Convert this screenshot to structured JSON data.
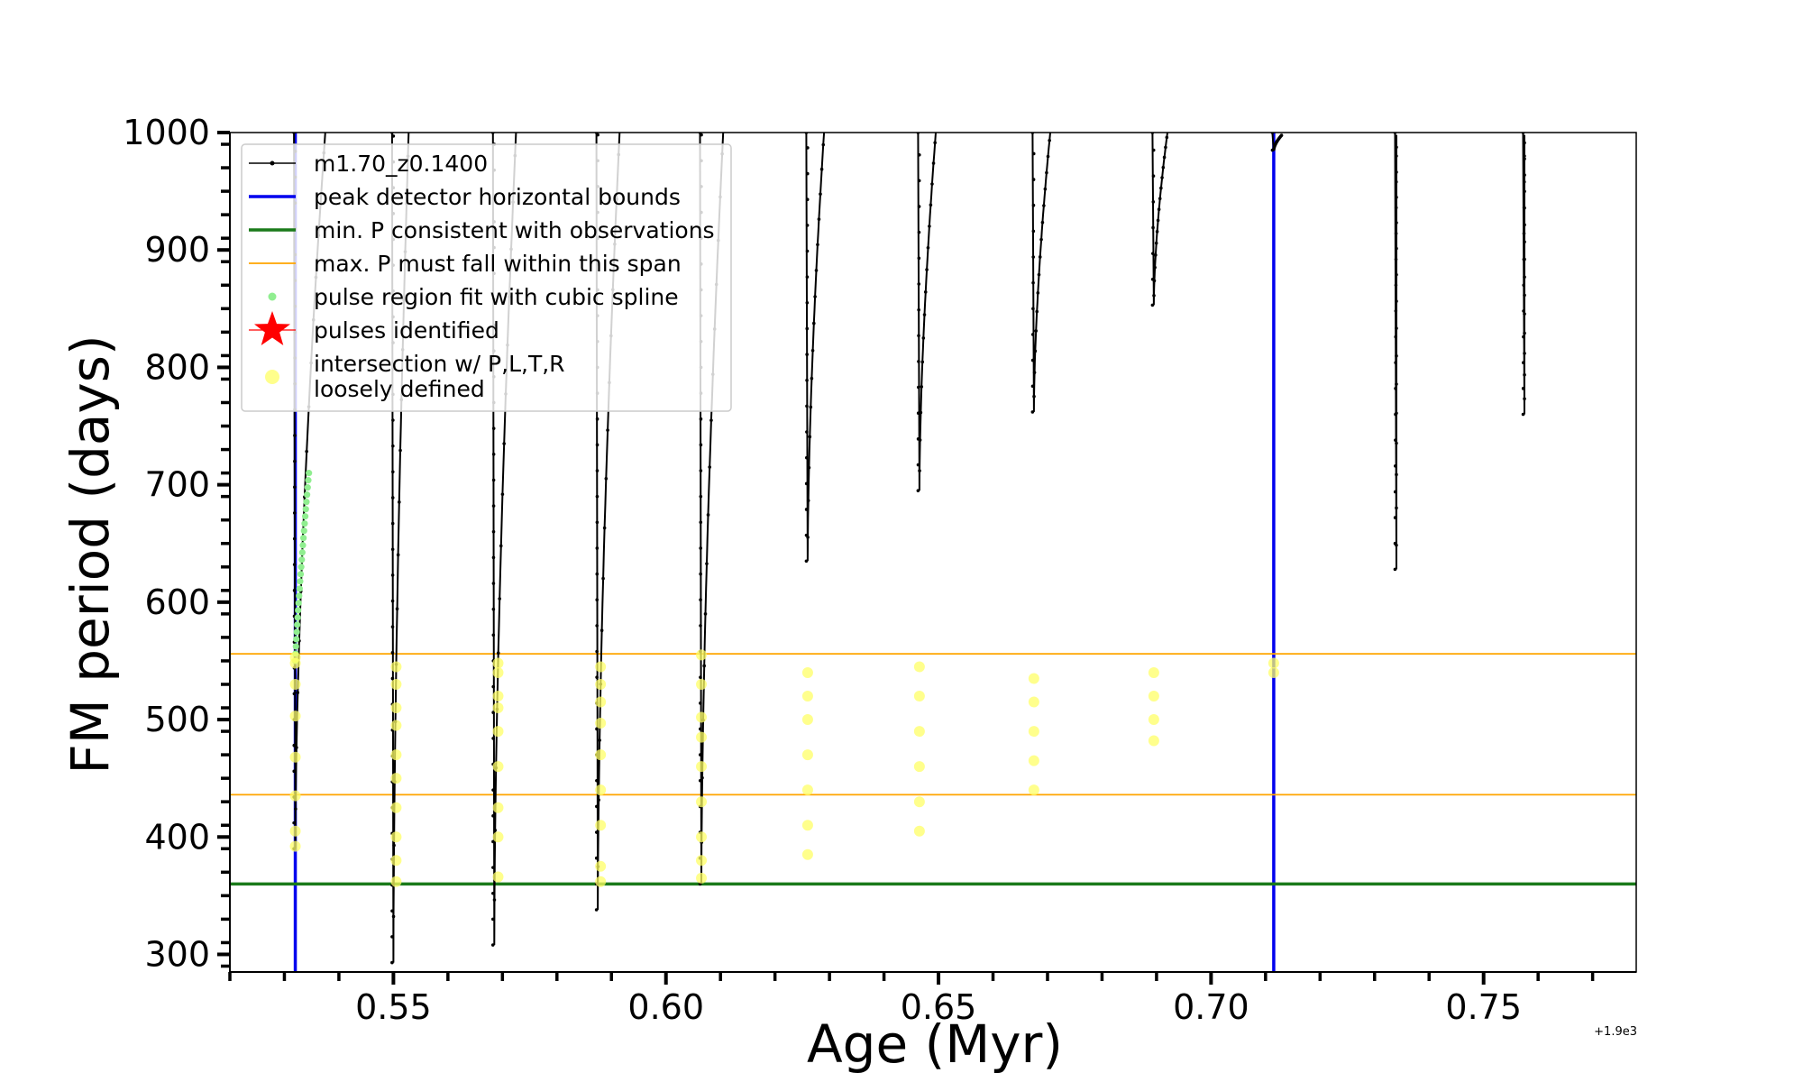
{
  "chart_data": {
    "type": "line",
    "title": "",
    "xlabel": "Age (Myr)",
    "ylabel": "FM period (days)",
    "xlim": [
      0.52,
      0.778
    ],
    "ylim": [
      285,
      1000
    ],
    "offset_text": "+1.9e3",
    "x_ticks": [
      0.55,
      0.6,
      0.65,
      0.7,
      0.75
    ],
    "x_tick_labels": [
      "0.55",
      "0.60",
      "0.65",
      "0.70",
      "0.75"
    ],
    "y_ticks": [
      300,
      400,
      500,
      600,
      700,
      800,
      900,
      1000
    ],
    "y_tick_labels": [
      "300",
      "400",
      "500",
      "600",
      "700",
      "800",
      "900",
      "1000"
    ],
    "colors": {
      "track": "#000000",
      "bounds": "#0000ee",
      "min_p": "#1a7a1a",
      "max_p_span": "#ffa500",
      "spline": "#90ee90",
      "pulses": "#ff0000",
      "intersection": "#ffff66"
    },
    "vertical_bounds": [
      0.532,
      0.7115
    ],
    "min_period": 360,
    "max_period_span": [
      436,
      556
    ],
    "pulses": [
      {
        "x": 0.532,
        "min": 390,
        "right_x": 0.5375,
        "right_top": 1000
      },
      {
        "x": 0.55,
        "min": 293,
        "right_x": 0.5528,
        "right_top": 1000
      },
      {
        "x": 0.5685,
        "min": 308,
        "right_x": 0.5725,
        "right_top": 1000
      },
      {
        "x": 0.5875,
        "min": 338,
        "right_x": 0.5915,
        "right_top": 1000
      },
      {
        "x": 0.6065,
        "min": 360,
        "right_x": 0.6105,
        "right_top": 1000
      },
      {
        "x": 0.626,
        "min": 635,
        "right_x": 0.629,
        "right_top": 1000
      },
      {
        "x": 0.6465,
        "min": 695,
        "right_x": 0.6495,
        "right_top": 1000
      },
      {
        "x": 0.6675,
        "min": 762,
        "right_x": 0.6705,
        "right_top": 1000
      },
      {
        "x": 0.6895,
        "min": 853,
        "right_x": 0.692,
        "right_top": 1000
      },
      {
        "x": 0.7115,
        "min": 985,
        "right_x": 0.713,
        "right_top": 998
      },
      {
        "x": 0.734,
        "min": 628,
        "right_x": 0.734,
        "right_top": 998
      },
      {
        "x": 0.7575,
        "min": 760,
        "right_x": 0.7575,
        "right_top": 998
      }
    ],
    "spline_region": {
      "x": [
        0.532,
        0.5345
      ],
      "y": [
        550,
        710
      ]
    },
    "intersections": [
      {
        "x": 0.532,
        "y": [
          392,
          405,
          435,
          468,
          503,
          530,
          548,
          553
        ]
      },
      {
        "x": 0.5505,
        "y": [
          362,
          380,
          400,
          425,
          450,
          470,
          495,
          510,
          530,
          545
        ]
      },
      {
        "x": 0.5692,
        "y": [
          366,
          400,
          425,
          460,
          490,
          510,
          520,
          540,
          548
        ]
      },
      {
        "x": 0.588,
        "y": [
          362,
          375,
          410,
          440,
          470,
          497,
          515,
          530,
          545
        ]
      },
      {
        "x": 0.6065,
        "y": [
          365,
          380,
          400,
          430,
          460,
          485,
          502,
          530,
          555
        ]
      },
      {
        "x": 0.626,
        "y": [
          385,
          410,
          440,
          470,
          500,
          520,
          540
        ]
      },
      {
        "x": 0.6465,
        "y": [
          405,
          430,
          460,
          490,
          520,
          545
        ]
      },
      {
        "x": 0.6675,
        "y": [
          440,
          465,
          490,
          515,
          535
        ]
      },
      {
        "x": 0.6895,
        "y": [
          482,
          500,
          520,
          540
        ]
      },
      {
        "x": 0.7115,
        "y": [
          540,
          548
        ]
      }
    ],
    "legend": {
      "position": "top-left",
      "entries": [
        {
          "label": "m1.70_z0.1400",
          "marker": "line-dot"
        },
        {
          "label": "peak detector horizontal bounds",
          "marker": "line-blue"
        },
        {
          "label": "min. P consistent with observations",
          "marker": "line-green"
        },
        {
          "label": "max. P must fall within this span",
          "marker": "line-orange"
        },
        {
          "label": "pulse region fit with cubic spline",
          "marker": "dot-green"
        },
        {
          "label": "pulses identified",
          "marker": "star-red"
        },
        {
          "label": "intersection w/ P,L,T,R",
          "label2": "loosely defined",
          "marker": "dot-yellow"
        }
      ]
    }
  }
}
